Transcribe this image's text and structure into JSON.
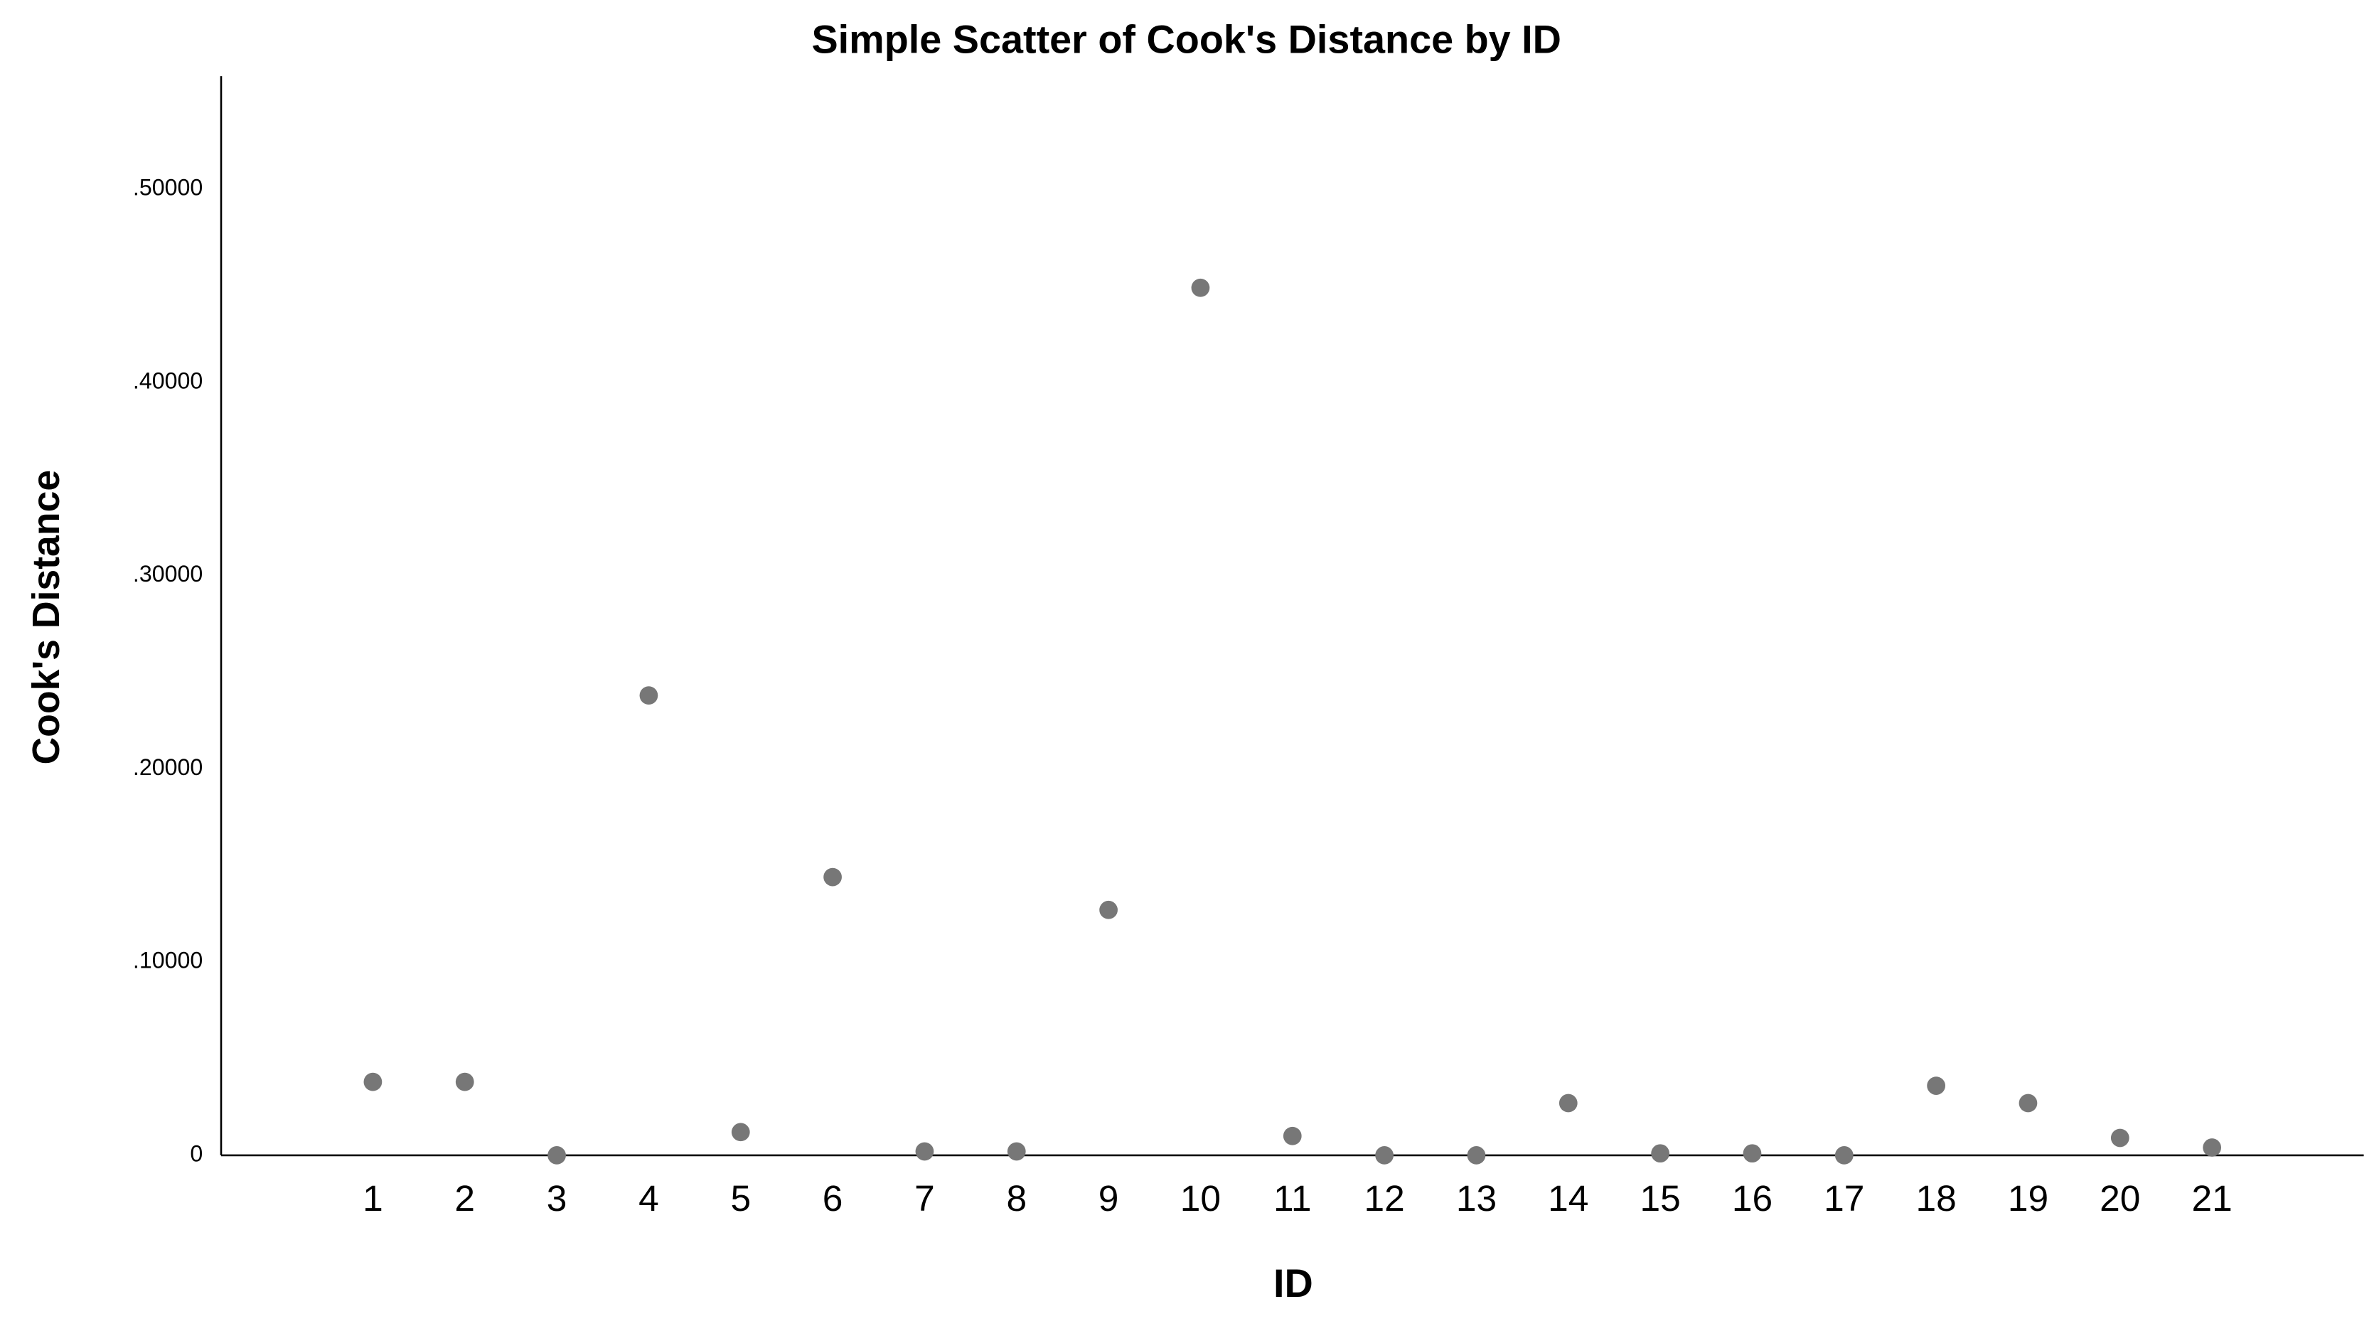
{
  "chart_data": {
    "type": "scatter",
    "title": "Simple Scatter of Cook's Distance by ID",
    "x_label": "ID",
    "y_label": "Cook's Distance",
    "color": "#777777",
    "x": [
      1,
      2,
      3,
      4,
      5,
      6,
      7,
      8,
      9,
      10,
      11,
      12,
      13,
      14,
      15,
      16,
      17,
      18,
      19,
      20,
      21
    ],
    "values": [
      0.038,
      0.038,
      0.0,
      0.238,
      0.012,
      0.144,
      0.002,
      0.002,
      0.127,
      0.449,
      0.01,
      0.0,
      0.0,
      0.027,
      0.001,
      0.001,
      0.0,
      0.036,
      0.027,
      0.009,
      0.004
    ],
    "xlim": [
      -0.65,
      22.65
    ],
    "xticks": [
      1,
      2,
      3,
      4,
      5,
      6,
      7,
      8,
      9,
      10,
      11,
      12,
      13,
      14,
      15,
      16,
      17,
      18,
      19,
      20,
      21
    ],
    "ylim": [
      0,
      0.5585
    ],
    "yticks": [
      0,
      {
        "value": 0.1,
        "label": ".10000"
      },
      {
        "value": 0.2,
        "label": ".20000"
      },
      {
        "value": 0.3,
        "label": ".30000"
      },
      {
        "value": 0.4,
        "label": ".40000"
      },
      {
        "value": 0.5,
        "label": ".50000"
      }
    ],
    "grid": false
  }
}
